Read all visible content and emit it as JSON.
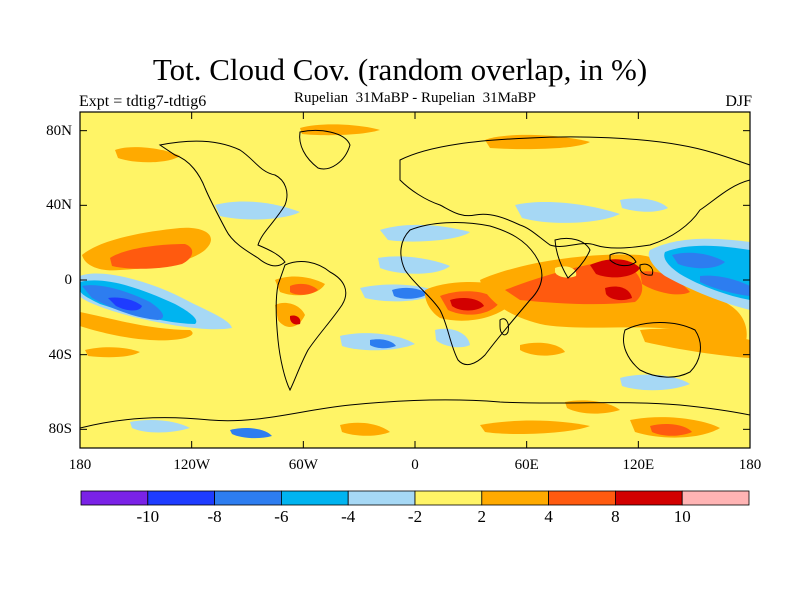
{
  "title": "Tot. Cloud Cov. (random overlap, in %)",
  "experiment_label": "Expt = tdtig7-tdtig6",
  "subtitle": "Rupelian  31MaBP - Rupelian  31MaBP",
  "season": "DJF",
  "map": {
    "projection": "cylindrical-equidistant",
    "lon_range": [
      -180,
      180
    ],
    "lat_range": [
      -90,
      90
    ],
    "lat_ticks": [
      {
        "value": 80,
        "label": "80N"
      },
      {
        "value": 40,
        "label": "40N"
      },
      {
        "value": 0,
        "label": "0"
      },
      {
        "value": -40,
        "label": "40S"
      },
      {
        "value": -80,
        "label": "80S"
      }
    ],
    "lon_ticks": [
      {
        "value": -180,
        "label": "180"
      },
      {
        "value": -120,
        "label": "120W"
      },
      {
        "value": -60,
        "label": "60W"
      },
      {
        "value": 0,
        "label": "0"
      },
      {
        "value": 60,
        "label": "60E"
      },
      {
        "value": 120,
        "label": "120E"
      },
      {
        "value": 180,
        "label": "180"
      }
    ],
    "background_color": "#fff466"
  },
  "colorbar": {
    "colors": [
      "#7a22e6",
      "#1e3cff",
      "#2d7df0",
      "#00b4f0",
      "#a6d8f5",
      "#fff466",
      "#ffaa00",
      "#ff5a0f",
      "#d20000",
      "#ffb4b4"
    ],
    "labels": [
      "-10",
      "-8",
      "-6",
      "-4",
      "-2",
      "2",
      "4",
      "8",
      "10"
    ]
  }
}
